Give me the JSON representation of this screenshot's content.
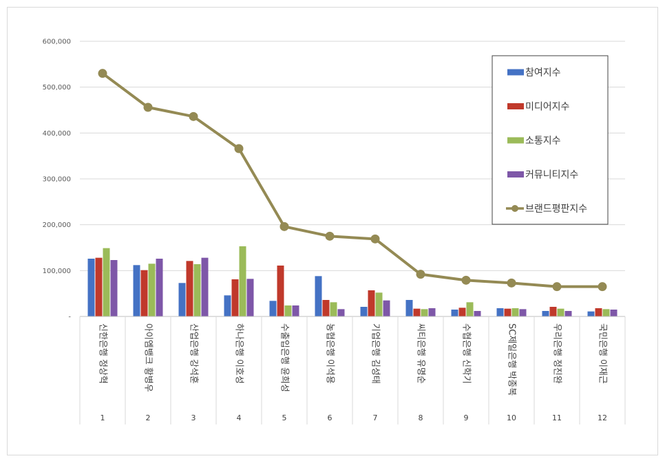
{
  "chart_data": {
    "type": "bar",
    "title": "",
    "xlabel": "",
    "ylabel": "",
    "ylim": [
      0,
      600000
    ],
    "yticks": [
      0,
      100000,
      200000,
      300000,
      400000,
      500000,
      600000
    ],
    "ytick_labels": [
      "-",
      "100,000",
      "200,000",
      "300,000",
      "400,000",
      "500,000",
      "600,000"
    ],
    "grid": true,
    "legend_position": "top-right",
    "categories": [
      "신한은행 정상혁",
      "아이엠뱅크 황병우",
      "산업은행 강석훈",
      "하나은행 이호성",
      "수출입은행 윤희성",
      "농협은행 이석용",
      "기업은행 김성태",
      "씨티은행 유명순",
      "수협은행 신학기",
      "SC제일은행 박종복",
      "우리은행 정진완",
      "국민은행 이재근"
    ],
    "index_labels": [
      "1",
      "2",
      "3",
      "4",
      "5",
      "6",
      "7",
      "8",
      "9",
      "10",
      "11",
      "12"
    ],
    "series": [
      {
        "name": "참여지수",
        "type": "bar",
        "color": "#4472c4",
        "values": [
          126000,
          112000,
          73000,
          46000,
          34000,
          88000,
          21000,
          36000,
          15000,
          18000,
          12000,
          11000
        ]
      },
      {
        "name": "미디어지수",
        "type": "bar",
        "color": "#c0392b",
        "values": [
          128000,
          101000,
          121000,
          81000,
          111000,
          36000,
          57000,
          17000,
          19000,
          17000,
          21000,
          18000
        ]
      },
      {
        "name": "소통지수",
        "type": "bar",
        "color": "#9bbb59",
        "values": [
          149000,
          115000,
          114000,
          153000,
          24000,
          31000,
          52000,
          16000,
          31000,
          18000,
          17000,
          16000
        ]
      },
      {
        "name": "커뮤니티지수",
        "type": "bar",
        "color": "#7e57a8",
        "values": [
          123000,
          126000,
          128000,
          82000,
          24000,
          16000,
          35000,
          18000,
          12000,
          16000,
          12000,
          15000
        ]
      },
      {
        "name": "브랜드평판지수",
        "type": "line",
        "color": "#948a54",
        "values": [
          530000,
          456000,
          436000,
          366000,
          196000,
          175000,
          169000,
          92000,
          79000,
          73000,
          65000,
          65000
        ]
      }
    ]
  }
}
